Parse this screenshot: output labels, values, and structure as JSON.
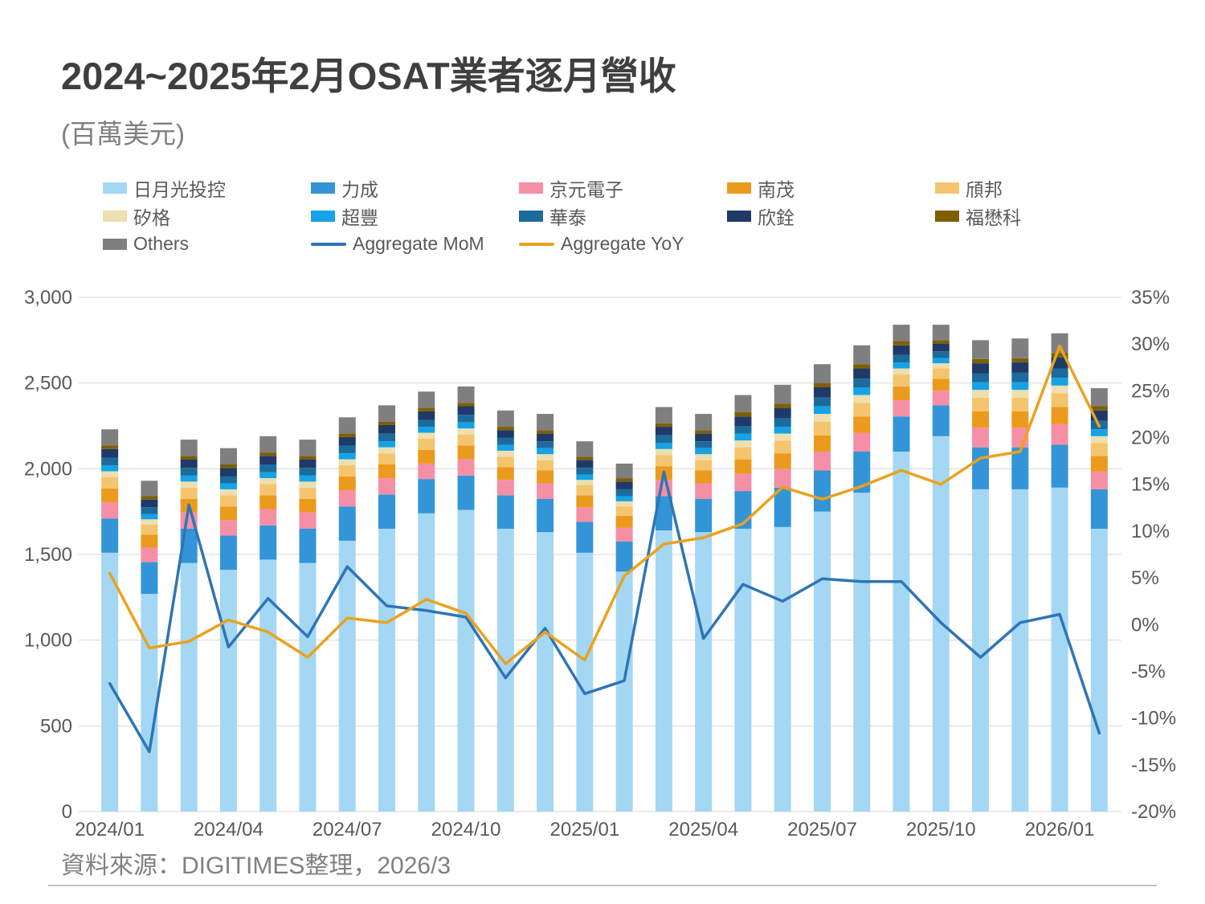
{
  "source_note": "資料來源：DIGITIMES整理，2026/3",
  "chart_data": {
    "type": "bar",
    "variant": "stacked-columns-with-lines",
    "title": "2024~2025年2月OSAT業者逐月營收",
    "unit_label": "(百萬美元)",
    "grid": true,
    "legend_position": "top-left",
    "categories": [
      "2024/01",
      "2024/02",
      "2024/03",
      "2024/04",
      "2024/05",
      "2024/06",
      "2024/07",
      "2024/08",
      "2024/09",
      "2024/10",
      "2024/11",
      "2024/12",
      "2025/01",
      "2025/02",
      "2025/03",
      "2025/04",
      "2025/05",
      "2025/06",
      "2025/07",
      "2025/08",
      "2025/09",
      "2025/10",
      "2025/11",
      "2025/12",
      "2026/01",
      "2026/02"
    ],
    "x_axis": {
      "tick_indices": [
        0,
        3,
        6,
        9,
        12,
        15,
        18,
        21,
        24
      ],
      "tick_labels": [
        "2024/01",
        "2024/04",
        "2024/07",
        "2024/10",
        "2025/01",
        "2025/04",
        "2025/07",
        "2025/10",
        "2026/01"
      ]
    },
    "left_axis": {
      "min": 0,
      "max": 3000,
      "step": 500,
      "tick_labels": [
        "0",
        "500",
        "1,000",
        "1,500",
        "2,000",
        "2,500",
        "3,000"
      ]
    },
    "right_axis": {
      "min": -20,
      "max": 35,
      "step": 5,
      "tick_labels": [
        "35%",
        "30%",
        "25%",
        "20%",
        "15%",
        "10%",
        "5%",
        "0%",
        "-5%",
        "-10%",
        "-15%",
        "-20%"
      ]
    },
    "bar_series": [
      {
        "key": "ase",
        "name": "日月光投控",
        "color": "#A4D7F4",
        "values": [
          1510,
          1270,
          1450,
          1410,
          1470,
          1450,
          1580,
          1650,
          1740,
          1760,
          1650,
          1630,
          1510,
          1400,
          1640,
          1630,
          1650,
          1660,
          1750,
          1860,
          2100,
          2190,
          1880,
          1880,
          1890,
          1650
        ]
      },
      {
        "key": "pti",
        "name": "力成",
        "color": "#3395D8",
        "values": [
          200,
          185,
          200,
          200,
          200,
          200,
          200,
          200,
          200,
          200,
          195,
          195,
          180,
          175,
          200,
          195,
          220,
          230,
          240,
          240,
          205,
          180,
          245,
          245,
          250,
          230
        ]
      },
      {
        "key": "kyec",
        "name": "京元電子",
        "color": "#F48FA6",
        "values": [
          95,
          85,
          95,
          90,
          95,
          95,
          95,
          95,
          90,
          95,
          90,
          90,
          85,
          80,
          95,
          90,
          100,
          110,
          110,
          110,
          95,
          85,
          115,
          115,
          120,
          105
        ]
      },
      {
        "key": "chipmos",
        "name": "南茂",
        "color": "#EC9A1E",
        "values": [
          80,
          75,
          80,
          80,
          80,
          80,
          80,
          80,
          80,
          80,
          75,
          75,
          70,
          70,
          80,
          75,
          85,
          90,
          95,
          95,
          80,
          70,
          95,
          95,
          100,
          90
        ]
      },
      {
        "key": "chipbond",
        "name": "頎邦",
        "color": "#F4C56E",
        "values": [
          65,
          60,
          65,
          65,
          65,
          65,
          65,
          65,
          65,
          65,
          60,
          60,
          60,
          55,
          65,
          60,
          70,
          75,
          80,
          80,
          70,
          60,
          80,
          80,
          80,
          75
        ]
      },
      {
        "key": "sigurd",
        "name": "矽格",
        "color": "#EDDFAE",
        "values": [
          35,
          30,
          35,
          35,
          35,
          35,
          35,
          35,
          35,
          35,
          35,
          35,
          30,
          30,
          35,
          35,
          40,
          40,
          45,
          45,
          35,
          30,
          45,
          45,
          45,
          40
        ]
      },
      {
        "key": "greatek",
        "name": "超豐",
        "color": "#16A2E6",
        "values": [
          35,
          30,
          35,
          35,
          35,
          35,
          35,
          35,
          35,
          35,
          35,
          35,
          30,
          30,
          35,
          35,
          40,
          40,
          45,
          45,
          35,
          30,
          45,
          45,
          45,
          40
        ]
      },
      {
        "key": "ose",
        "name": "華泰",
        "color": "#1B6C9C",
        "values": [
          45,
          40,
          45,
          40,
          45,
          45,
          45,
          45,
          40,
          45,
          40,
          40,
          40,
          40,
          45,
          40,
          45,
          50,
          50,
          50,
          45,
          40,
          50,
          55,
          55,
          50
        ]
      },
      {
        "key": "ardentec",
        "name": "欣銓",
        "color": "#1F3A68",
        "values": [
          50,
          45,
          50,
          50,
          50,
          50,
          50,
          50,
          50,
          50,
          45,
          45,
          45,
          45,
          50,
          45,
          55,
          60,
          60,
          60,
          55,
          45,
          60,
          60,
          65,
          60
        ]
      },
      {
        "key": "forehope",
        "name": "福懋科",
        "color": "#7E5F00",
        "values": [
          20,
          20,
          20,
          20,
          20,
          20,
          20,
          20,
          20,
          20,
          20,
          20,
          20,
          20,
          20,
          20,
          25,
          25,
          25,
          25,
          25,
          20,
          25,
          25,
          25,
          25
        ]
      },
      {
        "key": "others",
        "name": "Others",
        "color": "#7F7F7F",
        "values": [
          95,
          90,
          95,
          95,
          95,
          95,
          95,
          95,
          95,
          95,
          95,
          95,
          90,
          85,
          95,
          95,
          100,
          110,
          110,
          110,
          95,
          90,
          110,
          115,
          115,
          105
        ]
      }
    ],
    "line_series": [
      {
        "key": "mom",
        "name": "Aggregate MoM",
        "color": "#2E75B6",
        "axis": "right",
        "values": [
          -6.3,
          -13.6,
          12.8,
          -2.4,
          2.8,
          -1.3,
          6.2,
          2.0,
          1.5,
          0.8,
          -5.7,
          -0.4,
          -7.4,
          -6.0,
          16.3,
          -1.5,
          4.3,
          2.5,
          4.9,
          4.6,
          4.6,
          0.2,
          -3.5,
          0.2,
          1.1,
          -11.6
        ]
      },
      {
        "key": "yoy",
        "name": "Aggregate YoY",
        "color": "#EAA21E",
        "axis": "right",
        "values": [
          5.5,
          -2.5,
          -1.8,
          0.5,
          -0.8,
          -3.5,
          0.7,
          0.2,
          2.7,
          1.2,
          -4.2,
          -0.8,
          -3.8,
          5.2,
          8.6,
          9.3,
          10.8,
          14.7,
          13.4,
          14.8,
          16.5,
          15.0,
          17.8,
          18.5,
          29.8,
          21.2
        ]
      }
    ]
  }
}
